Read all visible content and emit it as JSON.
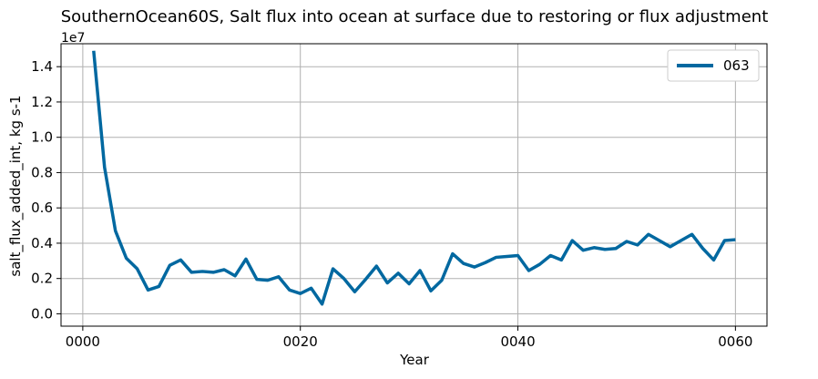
{
  "chart_data": {
    "type": "line",
    "title": "SouthernOcean60S, Salt flux into ocean at surface due to restoring or flux adjustment",
    "xlabel": "Year",
    "ylabel": "salt_flux_added_int, kg s-1",
    "y_offset_label": "1e7",
    "xlim": [
      -2,
      62.9
    ],
    "ylim": [
      -0.07,
      1.53
    ],
    "x_ticks": [
      0,
      20,
      40,
      60
    ],
    "x_tick_labels": [
      "0000",
      "0020",
      "0040",
      "0060"
    ],
    "y_ticks": [
      0.0,
      0.2,
      0.4,
      0.6,
      0.8,
      1.0,
      1.2,
      1.4
    ],
    "y_tick_labels": [
      "0.0",
      "0.2",
      "0.4",
      "0.6",
      "0.8",
      "1.0",
      "1.2",
      "1.4"
    ],
    "grid": true,
    "legend_position": "top-right",
    "series": [
      {
        "name": "063",
        "color": "#0068a0",
        "x": [
          1,
          2,
          3,
          4,
          5,
          6,
          7,
          8,
          9,
          10,
          11,
          12,
          13,
          14,
          15,
          16,
          17,
          18,
          19,
          20,
          21,
          22,
          23,
          24,
          25,
          26,
          27,
          28,
          29,
          30,
          31,
          32,
          33,
          34,
          35,
          36,
          37,
          38,
          39,
          40,
          41,
          42,
          43,
          44,
          45,
          46,
          47,
          48,
          49,
          50,
          51,
          52,
          53,
          54,
          55,
          56,
          57,
          58,
          59,
          60
        ],
        "values": [
          1.49,
          0.83,
          0.47,
          0.315,
          0.255,
          0.135,
          0.155,
          0.275,
          0.305,
          0.235,
          0.24,
          0.235,
          0.25,
          0.215,
          0.31,
          0.195,
          0.19,
          0.21,
          0.135,
          0.115,
          0.145,
          0.055,
          0.255,
          0.2,
          0.125,
          0.195,
          0.27,
          0.175,
          0.23,
          0.17,
          0.245,
          0.13,
          0.19,
          0.34,
          0.285,
          0.265,
          0.29,
          0.32,
          0.325,
          0.33,
          0.245,
          0.28,
          0.33,
          0.305,
          0.415,
          0.36,
          0.375,
          0.365,
          0.37,
          0.41,
          0.39,
          0.45,
          0.415,
          0.38,
          0.415,
          0.45,
          0.37,
          0.305,
          0.415,
          0.42
        ]
      }
    ]
  }
}
